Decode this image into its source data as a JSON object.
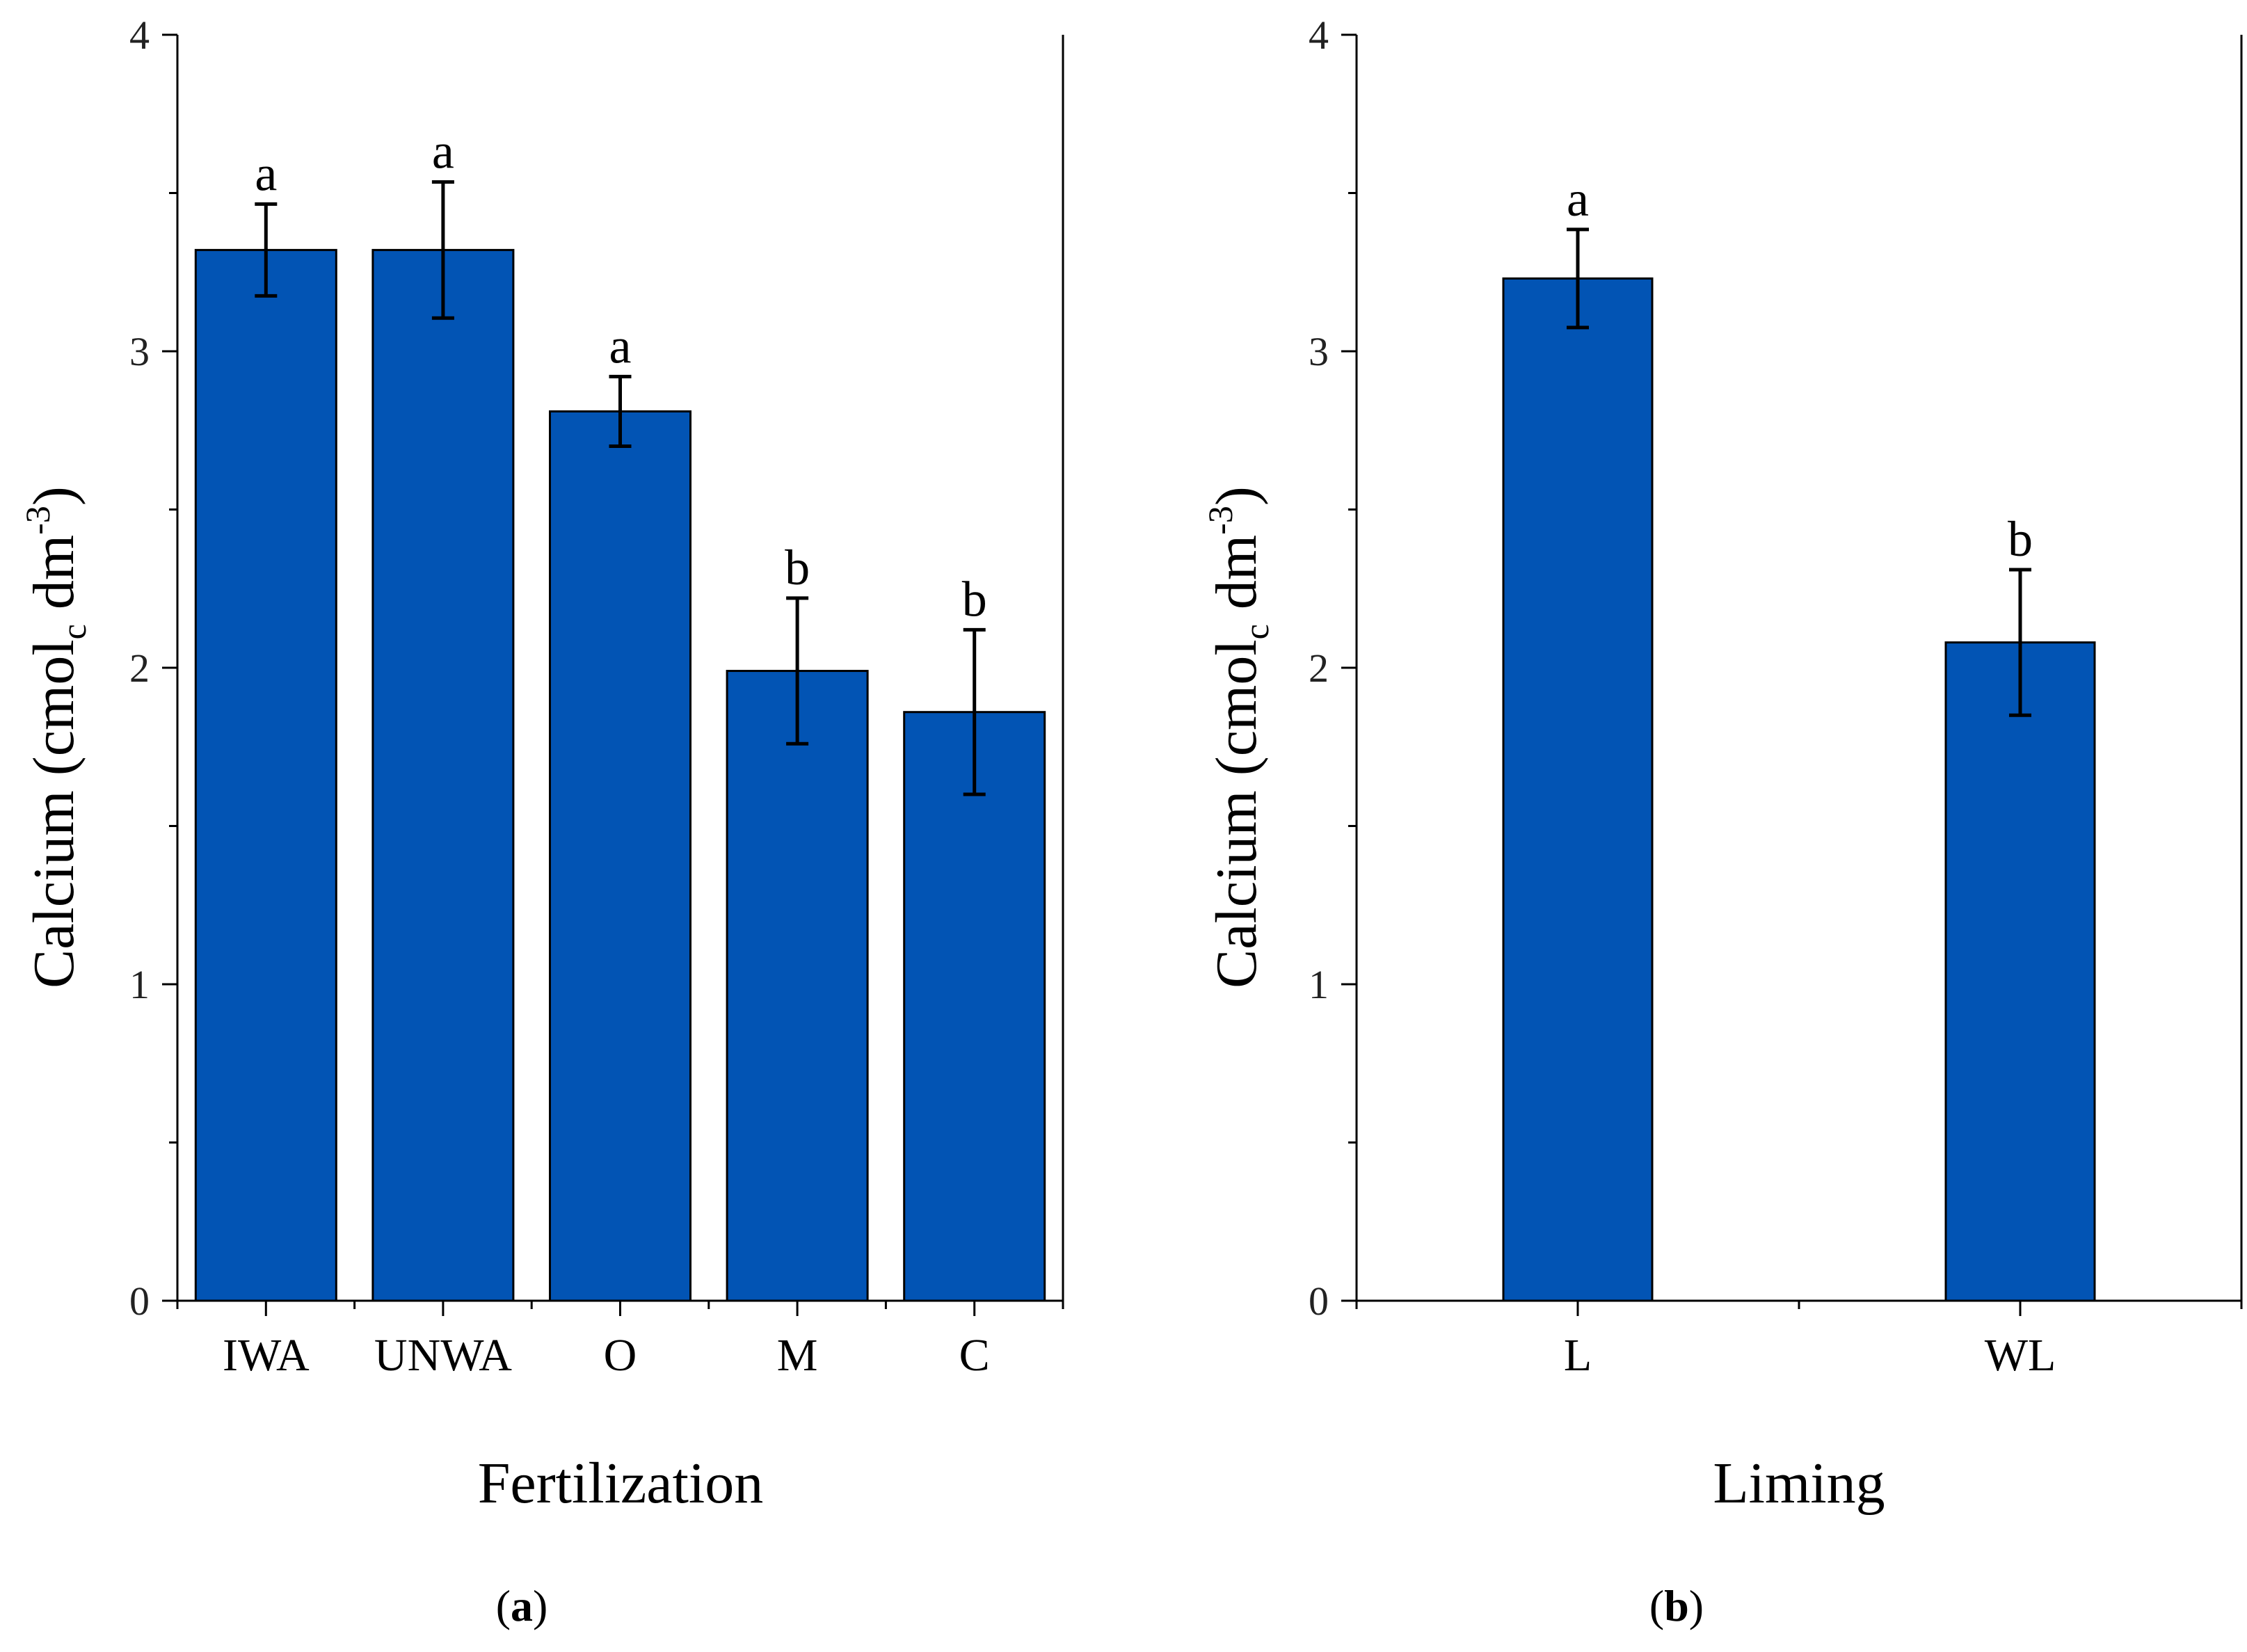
{
  "chart_data": [
    {
      "type": "bar",
      "panel": "a",
      "title": "",
      "xlabel": "Fertilization",
      "ylabel": {
        "main": "Calcium (cmol",
        "sub": "c",
        "mid": " dm",
        "sup": "-3",
        "end": ")"
      },
      "ylim": [
        0,
        4
      ],
      "yticks": [
        0,
        1,
        2,
        3,
        4
      ],
      "categories": [
        "IWA",
        "UNWA",
        "O",
        "M",
        "C"
      ],
      "values": [
        3.32,
        3.32,
        2.81,
        1.99,
        1.86
      ],
      "errors": [
        0.145,
        0.215,
        0.11,
        0.23,
        0.26
      ],
      "significance": [
        "a",
        "a",
        "a",
        "b",
        "b"
      ],
      "bar_color": "#0254B4",
      "grid": false
    },
    {
      "type": "bar",
      "panel": "b",
      "title": "",
      "xlabel": "Liming",
      "ylabel": {
        "main": "Calcium (cmol",
        "sub": "c",
        "mid": " dm",
        "sup": "-3",
        "end": ")"
      },
      "ylim": [
        0,
        4
      ],
      "yticks": [
        0,
        1,
        2,
        3,
        4
      ],
      "categories": [
        "L",
        "WL"
      ],
      "values": [
        3.23,
        2.08
      ],
      "errors": [
        0.155,
        0.23
      ],
      "significance": [
        "a",
        "b"
      ],
      "bar_color": "#0254B4",
      "grid": false
    }
  ],
  "panel_labels": [
    {
      "open": "(",
      "letter": "a",
      "close": ")"
    },
    {
      "open": "(",
      "letter": "b",
      "close": ")"
    }
  ]
}
